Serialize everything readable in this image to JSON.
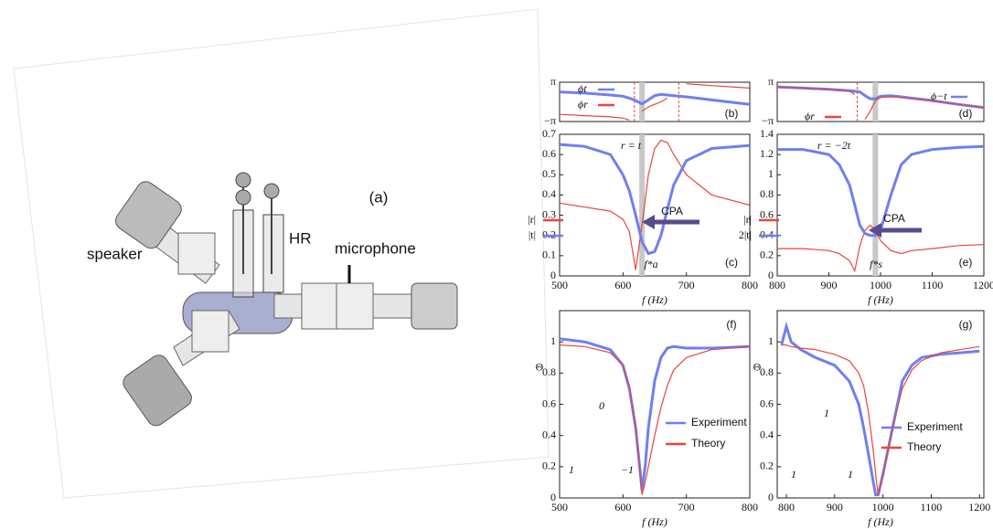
{
  "diagram": {
    "panel_label": "(a)",
    "labels": [
      "speaker",
      "HR",
      "microphone"
    ]
  },
  "chart_data": [
    {
      "type": "line",
      "panel": "(b)",
      "xlim": [
        500,
        800
      ],
      "ylim": [
        -3.14159,
        3.14159
      ],
      "yticks": [
        {
          "value": 3.14159,
          "label": "π"
        },
        {
          "value": -3.14159,
          "label": "−π"
        }
      ],
      "x": [
        500,
        540,
        580,
        600,
        610,
        620,
        630,
        640,
        650,
        660,
        670,
        680,
        700,
        740,
        800
      ],
      "highlight_x": 630,
      "markers": [
        618,
        688
      ],
      "series": [
        {
          "name": "ϕt",
          "color": "#6f7ff0",
          "values": [
            1.6,
            1.4,
            1.1,
            0.9,
            0.6,
            0.2,
            -0.3,
            0.3,
            1.0,
            1.2,
            1.1,
            1.0,
            0.8,
            0.3,
            -0.4
          ]
        },
        {
          "name": "ϕr",
          "color": "#e8463a",
          "values": [
            -2.0,
            -2.2,
            -2.4,
            -2.6,
            -2.9,
            null,
            -1.5,
            -0.8,
            -0.4,
            0.0,
            0.6,
            null,
            2.9,
            2.6,
            2.2
          ]
        }
      ]
    },
    {
      "type": "line",
      "panel": "(c)",
      "xlim": [
        500,
        800
      ],
      "xticks": [
        500,
        600,
        700,
        800
      ],
      "ylim": [
        0,
        0.7
      ],
      "yticks": [
        0,
        0.1,
        0.2,
        0.3,
        0.4,
        0.5,
        0.6,
        0.7
      ],
      "xlabel": "f (Hz)",
      "x": [
        500,
        540,
        580,
        600,
        610,
        620,
        630,
        640,
        650,
        660,
        670,
        680,
        700,
        740,
        800
      ],
      "highlight_x": 630,
      "annotations": [
        "r = t",
        "CPA",
        "f*a"
      ],
      "series": [
        {
          "name": "|r|",
          "color": "#e8463a",
          "values": [
            0.36,
            0.34,
            0.32,
            0.28,
            0.22,
            0.03,
            0.25,
            0.5,
            0.63,
            0.67,
            0.66,
            0.6,
            0.5,
            0.4,
            0.35
          ]
        },
        {
          "name": "|t|",
          "color": "#6f7ff0",
          "values": [
            0.65,
            0.64,
            0.6,
            0.5,
            0.42,
            0.3,
            0.17,
            0.11,
            0.12,
            0.2,
            0.33,
            0.45,
            0.57,
            0.63,
            0.645
          ]
        }
      ]
    },
    {
      "type": "line",
      "panel": "(d)",
      "xlim": [
        800,
        1200
      ],
      "ylim": [
        -3.14159,
        3.14159
      ],
      "yticks": [
        {
          "value": 3.14159,
          "label": "π"
        },
        {
          "value": -3.14159,
          "label": "−π"
        }
      ],
      "x": [
        800,
        850,
        900,
        920,
        940,
        950,
        960,
        970,
        980,
        990,
        1000,
        1020,
        1040,
        1060,
        1100,
        1150,
        1200
      ],
      "highlight_x": 990,
      "markers": [
        955
      ],
      "series": [
        {
          "name": "ϕ−t",
          "color": "#6f7ff0",
          "values": [
            2.4,
            2.2,
            2.0,
            1.9,
            1.8,
            1.7,
            1.6,
            1.0,
            0.5,
            0.5,
            0.9,
            1.0,
            0.8,
            0.6,
            0.2,
            -0.4,
            -0.9
          ]
        },
        {
          "name": "ϕr",
          "color": "#e8463a",
          "values": [
            2.4,
            2.2,
            2.0,
            1.9,
            1.7,
            1.2,
            null,
            -2.8,
            -1.5,
            0.2,
            0.7,
            0.8,
            0.7,
            0.5,
            0.2,
            -0.4,
            -0.9
          ]
        }
      ]
    },
    {
      "type": "line",
      "panel": "(e)",
      "xlim": [
        800,
        1200
      ],
      "xticks": [
        800,
        900,
        1000,
        1100,
        1200
      ],
      "ylim": [
        0,
        1.4
      ],
      "yticks": [
        0,
        0.2,
        0.4,
        0.6,
        0.8,
        1,
        1.2,
        1.4
      ],
      "xlabel": "f (Hz)",
      "x": [
        800,
        850,
        900,
        920,
        940,
        950,
        960,
        970,
        980,
        990,
        1000,
        1020,
        1040,
        1060,
        1100,
        1150,
        1200
      ],
      "highlight_x": 990,
      "annotations": [
        "r = −2t",
        "CPA",
        "f*s"
      ],
      "series": [
        {
          "name": "|r|",
          "color": "#e8463a",
          "values": [
            0.27,
            0.27,
            0.25,
            0.22,
            0.15,
            0.05,
            0.3,
            0.45,
            0.5,
            0.45,
            0.35,
            0.25,
            0.22,
            0.25,
            0.27,
            0.3,
            0.31
          ]
        },
        {
          "name": "2|t|",
          "color": "#6f7ff0",
          "values": [
            1.25,
            1.25,
            1.2,
            1.1,
            0.9,
            0.7,
            0.5,
            0.42,
            0.4,
            0.4,
            0.45,
            0.8,
            1.1,
            1.2,
            1.25,
            1.27,
            1.28
          ]
        }
      ]
    },
    {
      "type": "line",
      "panel": "(f)",
      "xlim": [
        500,
        800
      ],
      "xticks": [
        500,
        600,
        700,
        800
      ],
      "ylim": [
        0,
        1.2
      ],
      "yticks": [
        0,
        0.2,
        0.4,
        0.6,
        0.8,
        1
      ],
      "xlabel": "f (Hz)",
      "ylabel": "Θ",
      "x": [
        500,
        540,
        580,
        600,
        610,
        620,
        625,
        630,
        635,
        640,
        650,
        660,
        670,
        680,
        700,
        740,
        800
      ],
      "annotations": [
        "0",
        "1",
        "−1"
      ],
      "series": [
        {
          "name": "Experiment",
          "color": "#6f7ff0",
          "values": [
            1.02,
            1.0,
            0.95,
            0.85,
            0.7,
            0.45,
            0.25,
            0.05,
            0.2,
            0.45,
            0.75,
            0.9,
            0.96,
            0.97,
            0.96,
            0.96,
            0.97
          ]
        },
        {
          "name": "Theory",
          "color": "#e8463a",
          "values": [
            0.98,
            0.97,
            0.93,
            0.85,
            0.72,
            0.45,
            0.25,
            0.02,
            0.1,
            0.2,
            0.4,
            0.58,
            0.72,
            0.82,
            0.9,
            0.95,
            0.97
          ]
        }
      ]
    },
    {
      "type": "line",
      "panel": "(g)",
      "xlim": [
        781,
        1209
      ],
      "xticks": [
        800,
        900,
        1000,
        1100,
        1200
      ],
      "ylim": [
        0,
        1.2
      ],
      "yticks": [
        0,
        0.2,
        0.4,
        0.6,
        0.8,
        1
      ],
      "xlabel": "f (Hz)",
      "ylabel": "Θ",
      "x": [
        790,
        800,
        810,
        830,
        860,
        900,
        930,
        950,
        960,
        970,
        980,
        985,
        990,
        1000,
        1020,
        1040,
        1060,
        1080,
        1120,
        1160,
        1200
      ],
      "annotations": [
        "1",
        "1",
        "1"
      ],
      "series": [
        {
          "name": "Experiment",
          "color": "#6f7ff0",
          "values": [
            0.98,
            1.1,
            1.0,
            0.95,
            0.9,
            0.85,
            0.75,
            0.6,
            0.45,
            0.28,
            0.1,
            0.02,
            0.02,
            0.15,
            0.45,
            0.75,
            0.85,
            0.9,
            0.92,
            0.93,
            0.94
          ]
        },
        {
          "name": "Theory",
          "color": "#e8463a",
          "values": [
            0.98,
            0.98,
            0.97,
            0.96,
            0.95,
            0.92,
            0.88,
            0.8,
            0.72,
            0.55,
            0.3,
            0.15,
            0.02,
            0.15,
            0.45,
            0.7,
            0.82,
            0.88,
            0.93,
            0.95,
            0.97
          ]
        }
      ]
    }
  ]
}
